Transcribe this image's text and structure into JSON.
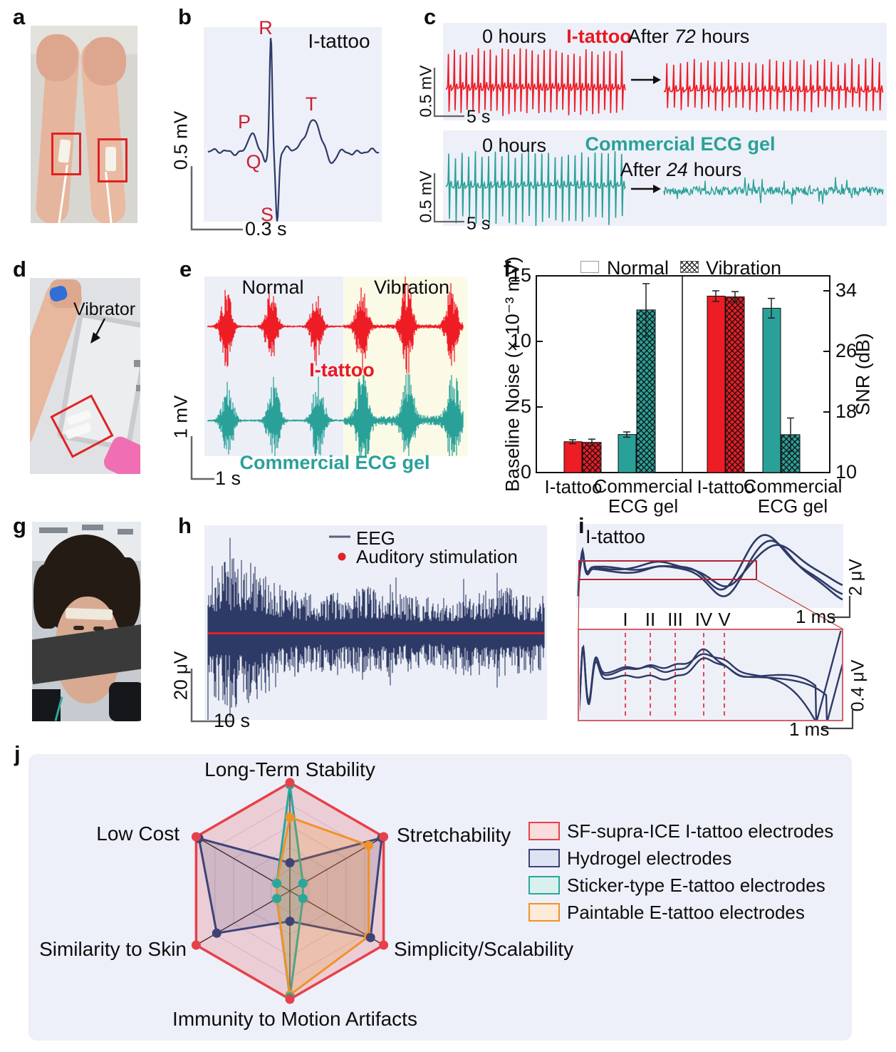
{
  "figure": {
    "background": "#ffffff",
    "panel_labels": [
      "a",
      "b",
      "c",
      "d",
      "e",
      "f",
      "g",
      "h",
      "i",
      "j"
    ]
  },
  "panel_b": {
    "title": "I-tattoo",
    "wave_points": [
      "P",
      "Q",
      "R",
      "S",
      "T"
    ],
    "scale_vertical": "0.5 mV",
    "scale_horizontal": "0.3 s",
    "trace_color": "#2e3a68",
    "label_color": "#cc2030"
  },
  "panel_c": {
    "top": {
      "time_label": "0 hours",
      "electrode": "I-tattoo",
      "after_prefix": "After",
      "after_hours": "72",
      "after_suffix": "hours",
      "scale_vertical": "0.5 mV",
      "scale_horizontal": "5 s",
      "trace_color": "#ee1c25"
    },
    "bottom": {
      "time_label": "0 hours",
      "electrode": "Commercial ECG gel",
      "after_prefix": "After",
      "after_hours": "24",
      "after_suffix": "hours",
      "scale_vertical": "0.5 mV",
      "scale_horizontal": "5 s",
      "trace_color": "#2aa198"
    }
  },
  "panel_d": {
    "annotation": "Vibrator"
  },
  "panel_e": {
    "section_left": "Normal",
    "section_right": "Vibration",
    "trace_top_label": "I-tattoo",
    "trace_bottom_label": "Commercial ECG gel",
    "scale_vertical": "1 mV",
    "scale_horizontal": "1 s"
  },
  "panel_h": {
    "legend_trace": "EEG",
    "legend_marker": "Auditory stimulation",
    "scale_vertical": "20 μV",
    "scale_horizontal": "10 s",
    "trace_color": "#2e3a66",
    "marker_color": "#e1222b"
  },
  "panel_i": {
    "title": "I-tattoo",
    "wave_numerals": [
      "I",
      "II",
      "III",
      "IV",
      "V"
    ],
    "scale_vertical_top": "2 μV",
    "scale_horizontal_top": "1 ms",
    "scale_vertical_bottom": "0.4 μV",
    "scale_horizontal_bottom": "1 ms"
  },
  "chart_data": [
    {
      "id": "f",
      "type": "bar",
      "legend": [
        "Normal",
        "Vibration"
      ],
      "groups": [
        "I-tattoo",
        "Commercial ECG gel"
      ],
      "left_axis": {
        "label": "Baseline Noise (× 10⁻³ mV)",
        "ticks": [
          0,
          5,
          10,
          15
        ],
        "range": [
          0,
          15
        ]
      },
      "right_axis": {
        "label": "SNR (dB)",
        "ticks": [
          10,
          18,
          26,
          34
        ],
        "range": [
          10,
          35.8
        ]
      },
      "baseline_noise": {
        "groups": [
          {
            "name": "I-tattoo",
            "normal": 2.35,
            "vibration": 2.3,
            "err_normal": 0.15,
            "err_vibration": 0.25
          },
          {
            "name": "Commercial ECG gel",
            "normal": 2.9,
            "vibration": 12.4,
            "err_normal": 0.2,
            "err_vibration": 2.0
          }
        ]
      },
      "snr_db": {
        "groups": [
          {
            "name": "I-tattoo",
            "normal": 33.3,
            "vibration": 33.2,
            "err_normal": 0.7,
            "err_vibration": 0.7
          },
          {
            "name": "Commercial ECG gel",
            "normal": 31.7,
            "vibration": 15.0,
            "err_normal": 1.3,
            "err_vibration": 2.2
          }
        ]
      },
      "colors": {
        "i_tattoo": "#ee1c25",
        "commercial_ecg_gel": "#2aa198"
      }
    },
    {
      "id": "j",
      "type": "radar",
      "max": 5,
      "axes": [
        "Long-Term Stability",
        "Stretchability",
        "Simplicity/Scalability",
        "Immunity to Motion Artifacts",
        "Similarity to Skin",
        "Low Cost"
      ],
      "series": [
        {
          "name": "SF-supra-ICE I-tattoo electrodes",
          "color": "#e8404a",
          "fill": "#fadbde",
          "values": [
            5,
            5,
            5,
            5,
            5,
            5
          ]
        },
        {
          "name": "Hydrogel electrodes",
          "color": "#3d4377",
          "fill": "#dfe3f1",
          "values": [
            1.3,
            4.9,
            4.3,
            1.4,
            3.9,
            4.85
          ]
        },
        {
          "name": "Sticker-type E-tattoo electrodes",
          "color": "#2aa79b",
          "fill": "#d9f1ee",
          "values": [
            4.9,
            0.7,
            0.7,
            4.9,
            0.7,
            0.7
          ]
        },
        {
          "name": "Paintable E-tattoo electrodes",
          "color": "#f0922b",
          "fill": "#fcebd9",
          "values": [
            3.4,
            4.2,
            4.2,
            4.8,
            0.7,
            0.7
          ]
        }
      ]
    }
  ]
}
